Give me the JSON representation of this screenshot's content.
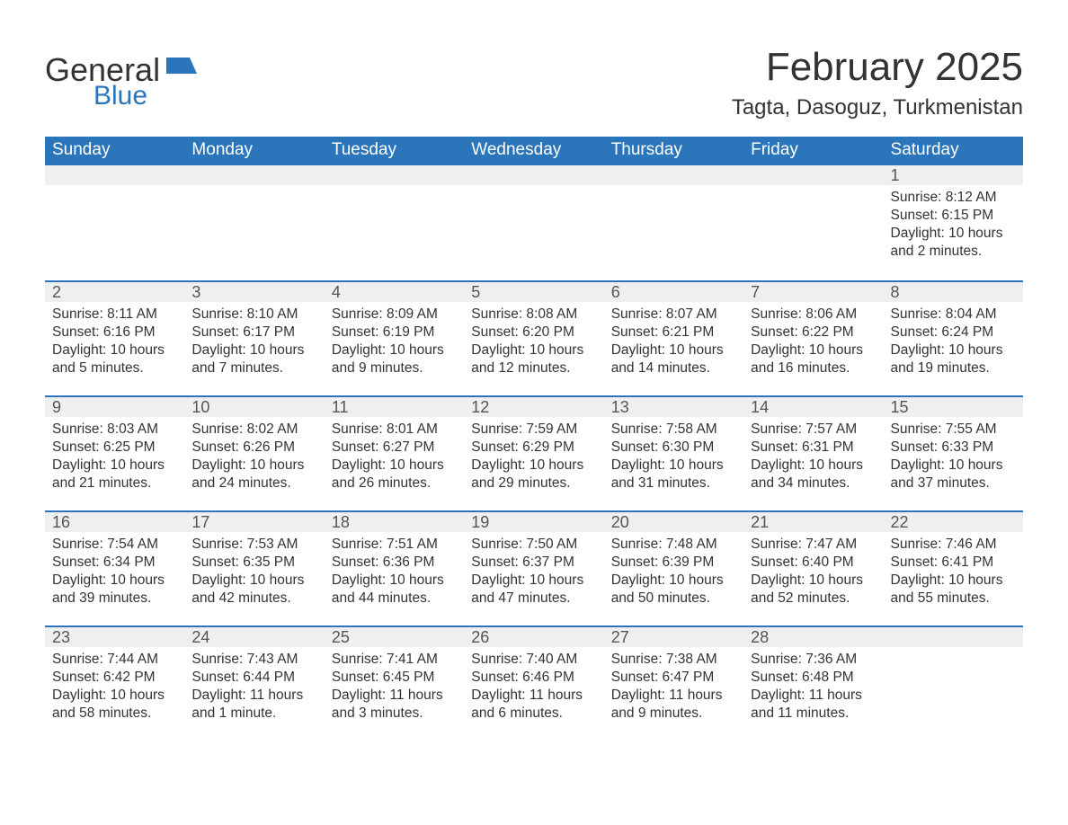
{
  "brand": {
    "word1": "General",
    "word2": "Blue",
    "accent_color": "#2b76bb"
  },
  "header": {
    "month_title": "February 2025",
    "location": "Tagta, Dasoguz, Turkmenistan"
  },
  "dow": [
    "Sunday",
    "Monday",
    "Tuesday",
    "Wednesday",
    "Thursday",
    "Friday",
    "Saturday"
  ],
  "colors": {
    "header_bg": "#2b76bb",
    "band_bg": "#efefef",
    "text": "#333333",
    "rule": "#2b76bb"
  },
  "weeks": [
    [
      null,
      null,
      null,
      null,
      null,
      null,
      {
        "n": "1",
        "sunrise": "8:12 AM",
        "sunset": "6:15 PM",
        "daylight": "10 hours and 2 minutes."
      }
    ],
    [
      {
        "n": "2",
        "sunrise": "8:11 AM",
        "sunset": "6:16 PM",
        "daylight": "10 hours and 5 minutes."
      },
      {
        "n": "3",
        "sunrise": "8:10 AM",
        "sunset": "6:17 PM",
        "daylight": "10 hours and 7 minutes."
      },
      {
        "n": "4",
        "sunrise": "8:09 AM",
        "sunset": "6:19 PM",
        "daylight": "10 hours and 9 minutes."
      },
      {
        "n": "5",
        "sunrise": "8:08 AM",
        "sunset": "6:20 PM",
        "daylight": "10 hours and 12 minutes."
      },
      {
        "n": "6",
        "sunrise": "8:07 AM",
        "sunset": "6:21 PM",
        "daylight": "10 hours and 14 minutes."
      },
      {
        "n": "7",
        "sunrise": "8:06 AM",
        "sunset": "6:22 PM",
        "daylight": "10 hours and 16 minutes."
      },
      {
        "n": "8",
        "sunrise": "8:04 AM",
        "sunset": "6:24 PM",
        "daylight": "10 hours and 19 minutes."
      }
    ],
    [
      {
        "n": "9",
        "sunrise": "8:03 AM",
        "sunset": "6:25 PM",
        "daylight": "10 hours and 21 minutes."
      },
      {
        "n": "10",
        "sunrise": "8:02 AM",
        "sunset": "6:26 PM",
        "daylight": "10 hours and 24 minutes."
      },
      {
        "n": "11",
        "sunrise": "8:01 AM",
        "sunset": "6:27 PM",
        "daylight": "10 hours and 26 minutes."
      },
      {
        "n": "12",
        "sunrise": "7:59 AM",
        "sunset": "6:29 PM",
        "daylight": "10 hours and 29 minutes."
      },
      {
        "n": "13",
        "sunrise": "7:58 AM",
        "sunset": "6:30 PM",
        "daylight": "10 hours and 31 minutes."
      },
      {
        "n": "14",
        "sunrise": "7:57 AM",
        "sunset": "6:31 PM",
        "daylight": "10 hours and 34 minutes."
      },
      {
        "n": "15",
        "sunrise": "7:55 AM",
        "sunset": "6:33 PM",
        "daylight": "10 hours and 37 minutes."
      }
    ],
    [
      {
        "n": "16",
        "sunrise": "7:54 AM",
        "sunset": "6:34 PM",
        "daylight": "10 hours and 39 minutes."
      },
      {
        "n": "17",
        "sunrise": "7:53 AM",
        "sunset": "6:35 PM",
        "daylight": "10 hours and 42 minutes."
      },
      {
        "n": "18",
        "sunrise": "7:51 AM",
        "sunset": "6:36 PM",
        "daylight": "10 hours and 44 minutes."
      },
      {
        "n": "19",
        "sunrise": "7:50 AM",
        "sunset": "6:37 PM",
        "daylight": "10 hours and 47 minutes."
      },
      {
        "n": "20",
        "sunrise": "7:48 AM",
        "sunset": "6:39 PM",
        "daylight": "10 hours and 50 minutes."
      },
      {
        "n": "21",
        "sunrise": "7:47 AM",
        "sunset": "6:40 PM",
        "daylight": "10 hours and 52 minutes."
      },
      {
        "n": "22",
        "sunrise": "7:46 AM",
        "sunset": "6:41 PM",
        "daylight": "10 hours and 55 minutes."
      }
    ],
    [
      {
        "n": "23",
        "sunrise": "7:44 AM",
        "sunset": "6:42 PM",
        "daylight": "10 hours and 58 minutes."
      },
      {
        "n": "24",
        "sunrise": "7:43 AM",
        "sunset": "6:44 PM",
        "daylight": "11 hours and 1 minute."
      },
      {
        "n": "25",
        "sunrise": "7:41 AM",
        "sunset": "6:45 PM",
        "daylight": "11 hours and 3 minutes."
      },
      {
        "n": "26",
        "sunrise": "7:40 AM",
        "sunset": "6:46 PM",
        "daylight": "11 hours and 6 minutes."
      },
      {
        "n": "27",
        "sunrise": "7:38 AM",
        "sunset": "6:47 PM",
        "daylight": "11 hours and 9 minutes."
      },
      {
        "n": "28",
        "sunrise": "7:36 AM",
        "sunset": "6:48 PM",
        "daylight": "11 hours and 11 minutes."
      },
      null
    ]
  ],
  "labels": {
    "sunrise_prefix": "Sunrise: ",
    "sunset_prefix": "Sunset: ",
    "daylight_prefix": "Daylight: "
  }
}
